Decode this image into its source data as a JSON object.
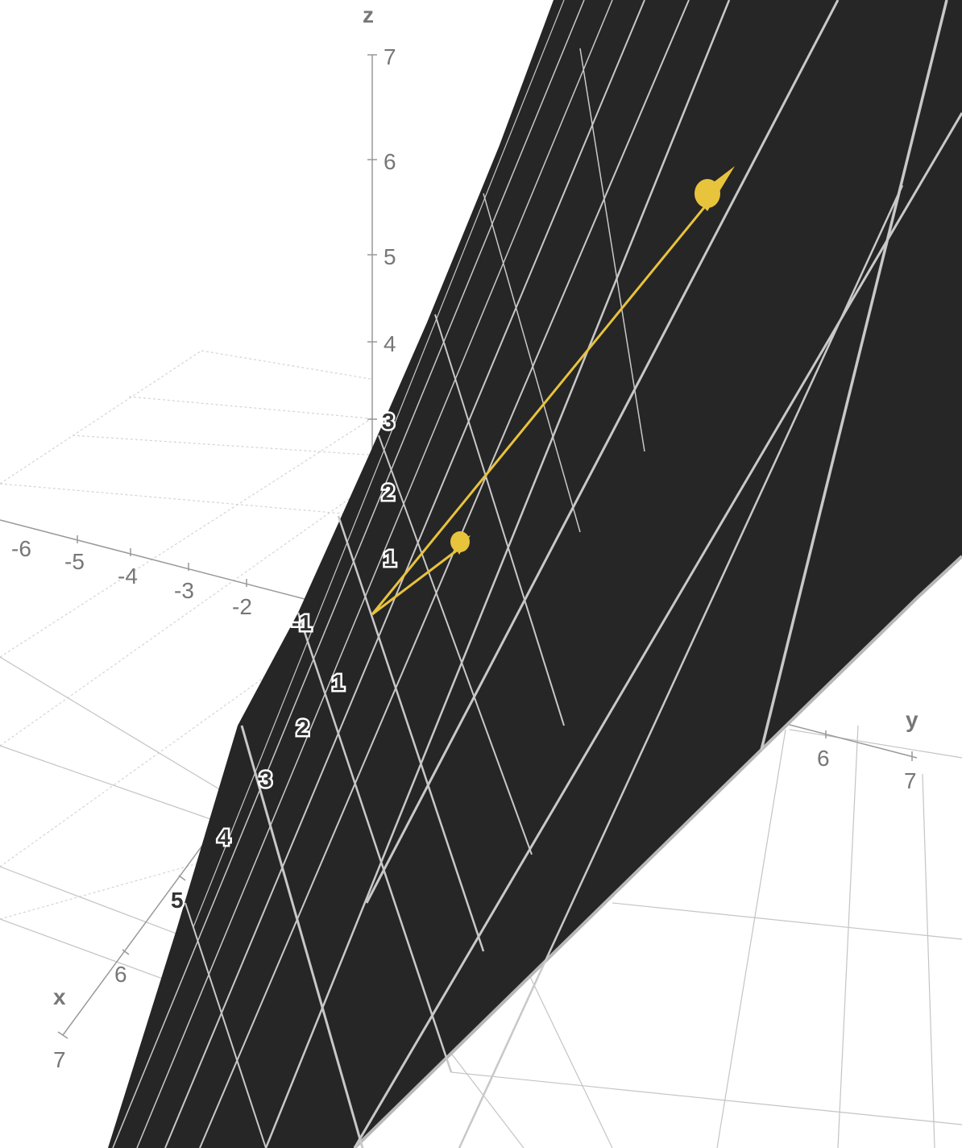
{
  "axes": {
    "x": {
      "name": "x",
      "ticks": [
        "1",
        "2",
        "3",
        "4",
        "5",
        "6",
        "7"
      ]
    },
    "y": {
      "name": "y",
      "ticks": [
        "-6",
        "-5",
        "-4",
        "-3",
        "-2",
        "-1",
        "6",
        "7"
      ]
    },
    "z": {
      "name": "z",
      "ticks": [
        "1",
        "2",
        "3",
        "4",
        "5",
        "6",
        "7"
      ]
    }
  },
  "colors": {
    "surface": "#262626",
    "mesh": "#c8c8c8",
    "vector": "#e8c33c",
    "grid": "#cccccc",
    "axis": "#888888"
  },
  "vectors": [
    {
      "name": "long-vector",
      "direction": "up-right"
    },
    {
      "name": "short-vector",
      "direction": "up-right"
    }
  ]
}
